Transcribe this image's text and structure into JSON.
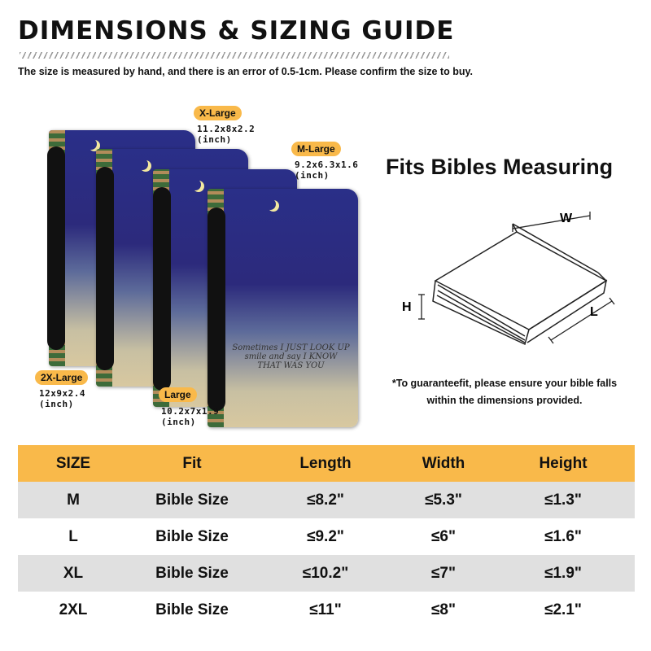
{
  "header": {
    "title": "DIMENSIONS & SIZING GUIDE",
    "subtitle": "The size is measured by hand, and there is an error of 0.5-1cm. Please confirm the size to buy."
  },
  "product": {
    "cover_text": "Sometimes I JUST LOOK UP smile and say I KNOW THAT WAS YOU",
    "sizes": [
      {
        "label": "X-Large",
        "dims": "11.2x8x2.2",
        "unit": "(inch)"
      },
      {
        "label": "M-Large",
        "dims": "9.2x6.3x1.6",
        "unit": "(inch)"
      },
      {
        "label": "2X-Large",
        "dims": "12x9x2.4",
        "unit": "(inch)"
      },
      {
        "label": "Large",
        "dims": "10.2x7x1.9",
        "unit": "(inch)"
      }
    ]
  },
  "diagram": {
    "title": "Fits Bibles Measuring",
    "w": "W",
    "h": "H",
    "l": "L",
    "note_line1": "*To guaranteefit, please ensure your bible falls",
    "note_line2": "within the dimensions provided."
  },
  "table": {
    "headers": [
      "SIZE",
      "Fit",
      "Length",
      "Width",
      "Height"
    ],
    "rows": [
      [
        "M",
        "Bible Size",
        "≤8.2\"",
        "≤5.3\"",
        "≤1.3\""
      ],
      [
        "L",
        "Bible Size",
        "≤9.2\"",
        "≤6\"",
        "≤1.6\""
      ],
      [
        "XL",
        "Bible Size",
        "≤10.2\"",
        "≤7\"",
        "≤1.9\""
      ],
      [
        "2XL",
        "Bible Size",
        "≤11\"",
        "≤8\"",
        "≤2.1\""
      ]
    ]
  },
  "colors": {
    "accent": "#f9b94a",
    "row_alt": "#e0e0e0"
  }
}
